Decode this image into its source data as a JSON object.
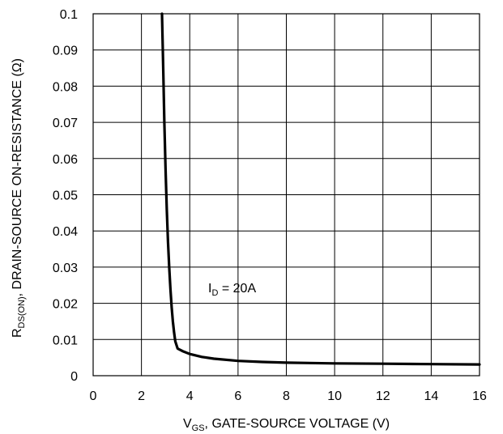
{
  "chart_data": {
    "type": "line",
    "title": "",
    "xlabel": {
      "main": "V",
      "sub": "GS",
      "rest": ", GATE-SOURCE VOLTAGE (V)"
    },
    "ylabel": {
      "main": "R",
      "sub": "DS(ON)",
      "rest": ", DRAIN-SOURCE ON-RESISTANCE (Ω)"
    },
    "xlim": [
      0,
      16
    ],
    "ylim": [
      0,
      0.1
    ],
    "x_ticks": [
      0,
      2,
      4,
      6,
      8,
      10,
      12,
      14,
      16
    ],
    "y_ticks": [
      0,
      0.01,
      0.02,
      0.03,
      0.04,
      0.05,
      0.06,
      0.07,
      0.08,
      0.09,
      0.1
    ],
    "x_tick_labels": [
      "0",
      "2",
      "4",
      "6",
      "8",
      "10",
      "12",
      "14",
      "16"
    ],
    "y_tick_labels": [
      "0",
      "0.01",
      "0.02",
      "0.03",
      "0.04",
      "0.05",
      "0.06",
      "0.07",
      "0.08",
      "0.09",
      "0.1"
    ],
    "grid": true,
    "annotation": {
      "main": "I",
      "sub": "D",
      "rest": " = 20A"
    },
    "series": [
      {
        "color": "#000000",
        "x": [
          2.85,
          2.9,
          2.95,
          3.0,
          3.05,
          3.1,
          3.15,
          3.2,
          3.25,
          3.3,
          3.35,
          3.4,
          3.5,
          3.7,
          4.0,
          4.5,
          5.0,
          6.0,
          7.0,
          8.0,
          10.0,
          12.0,
          14.0,
          16.0
        ],
        "y": [
          0.1,
          0.085,
          0.07,
          0.057,
          0.046,
          0.037,
          0.03,
          0.024,
          0.019,
          0.015,
          0.012,
          0.0095,
          0.0075,
          0.0068,
          0.006,
          0.0052,
          0.0047,
          0.0041,
          0.0038,
          0.0036,
          0.0034,
          0.0033,
          0.0032,
          0.0031
        ]
      }
    ]
  }
}
